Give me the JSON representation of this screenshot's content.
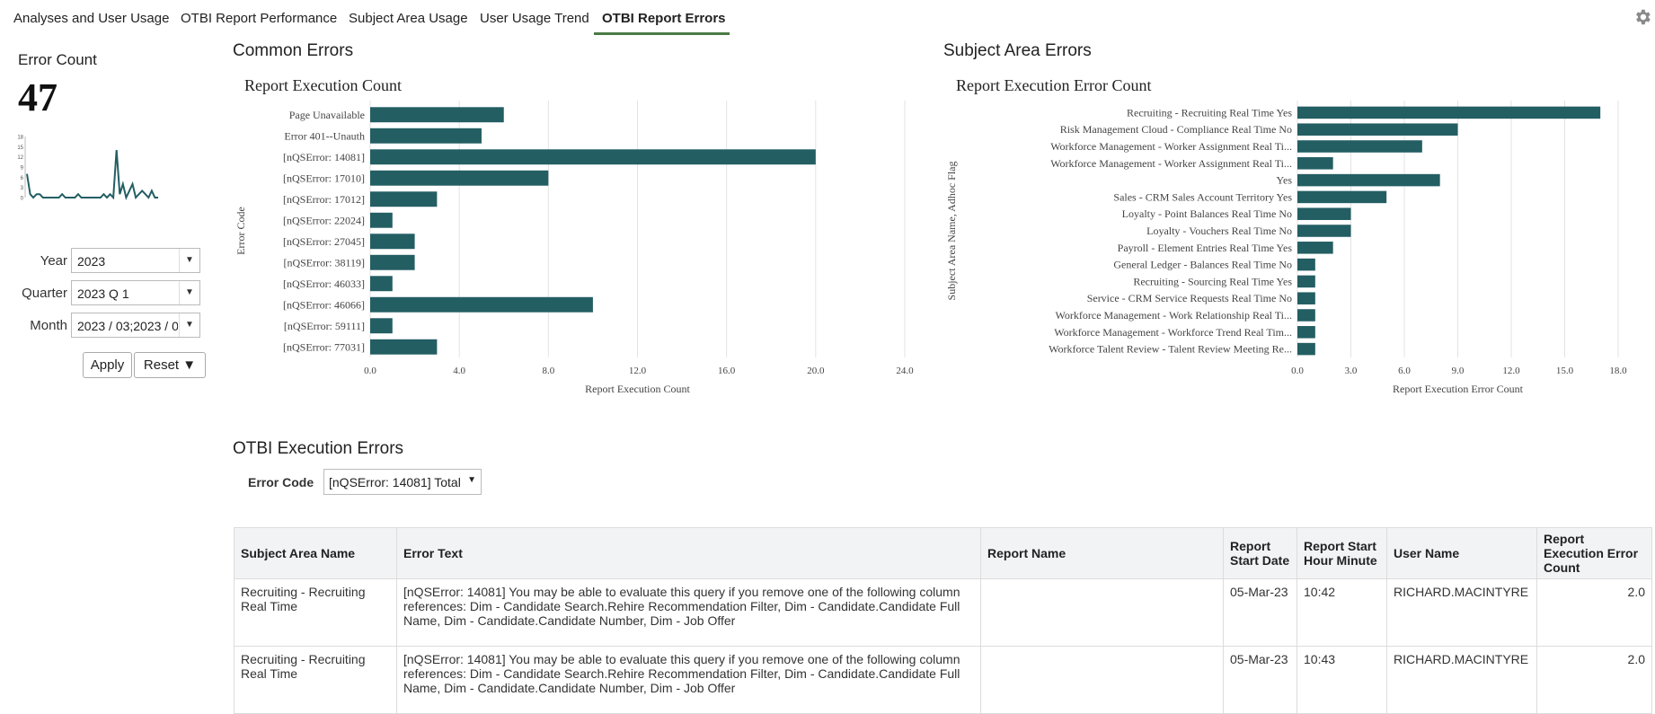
{
  "tabs": [
    {
      "label": "Analyses and User Usage"
    },
    {
      "label": "OTBI Report Performance"
    },
    {
      "label": "Subject Area Usage"
    },
    {
      "label": "User Usage Trend"
    },
    {
      "label": "OTBI Report Errors",
      "active": true
    }
  ],
  "settings_icon": "gear-icon",
  "kpi": {
    "label": "Error Count",
    "value": "47",
    "sparkline": {
      "yticks": [
        "18",
        "15",
        "12",
        "9",
        "6",
        "3",
        "0"
      ],
      "values": [
        7,
        1,
        0,
        1,
        1,
        0,
        0,
        0,
        0,
        0,
        0,
        1,
        0,
        0,
        0,
        0,
        1,
        0,
        0,
        0,
        0,
        0,
        0,
        0,
        1,
        0,
        1,
        0,
        14,
        1,
        4,
        0,
        2,
        4,
        0,
        1,
        2,
        1,
        0,
        2,
        0,
        0
      ]
    }
  },
  "prompts": {
    "year": {
      "label": "Year",
      "value": "2023"
    },
    "quarter": {
      "label": "Quarter",
      "value": "2023 Q 1"
    },
    "month": {
      "label": "Month",
      "value": "2023 / 03;2023 / 0"
    },
    "apply_label": "Apply",
    "reset_label": "Reset ▼"
  },
  "common_errors": {
    "section_title": "Common Errors",
    "chart_title": "Report Execution Count"
  },
  "subject_area_errors": {
    "section_title": "Subject Area Errors",
    "chart_title": "Report Execution Error Count"
  },
  "chart_data": [
    {
      "type": "bar",
      "orientation": "horizontal",
      "title": "Report Execution Count",
      "xlabel": "Report Execution Count",
      "ylabel": "Error Code",
      "xlim": [
        0,
        24
      ],
      "xticks": [
        "0.0",
        "4.0",
        "8.0",
        "12.0",
        "16.0",
        "20.0",
        "24.0"
      ],
      "grid": true,
      "color": "#235e63",
      "categories": [
        "Page Unavailable",
        "Error 401--Unauth",
        "[nQSError: 14081]",
        "[nQSError: 17010]",
        "[nQSError: 17012]",
        "[nQSError: 22024]",
        "[nQSError: 27045]",
        "[nQSError: 38119]",
        "[nQSError: 46033]",
        "[nQSError: 46066]",
        "[nQSError: 59111]",
        "[nQSError: 77031]"
      ],
      "values": [
        6,
        5,
        20,
        8,
        3,
        1,
        2,
        2,
        1,
        10,
        1,
        3
      ]
    },
    {
      "type": "bar",
      "orientation": "horizontal",
      "title": "Report Execution Error Count",
      "xlabel": "Report Execution Error Count",
      "ylabel": "Subject Area Name, Adhoc Flag",
      "xlim": [
        0,
        18
      ],
      "xticks": [
        "0.0",
        "3.0",
        "6.0",
        "9.0",
        "12.0",
        "15.0",
        "18.0"
      ],
      "grid": true,
      "color": "#235e63",
      "categories": [
        "Recruiting - Recruiting Real Time Yes",
        "Risk Management Cloud - Compliance Real Time No",
        "Workforce Management - Worker Assignment Real Ti...",
        "Workforce Management - Worker Assignment Real Ti...",
        "Yes",
        "Sales - CRM Sales Account Territory Yes",
        "Loyalty - Point Balances Real Time No",
        "Loyalty - Vouchers Real Time No",
        "Payroll - Element Entries Real Time Yes",
        "General Ledger - Balances Real Time No",
        "Recruiting - Sourcing Real Time Yes",
        "Service - CRM Service Requests Real Time No",
        "Workforce Management - Work Relationship Real Ti...",
        "Workforce Management - Workforce Trend Real Tim...",
        "Workforce Talent Review - Talent Review Meeting Re..."
      ],
      "values": [
        17,
        9,
        7,
        2,
        8,
        5,
        3,
        3,
        2,
        1,
        1,
        1,
        1,
        1,
        1
      ]
    }
  ],
  "execution_errors": {
    "section_title": "OTBI Execution Errors",
    "filter_label": "Error Code",
    "filter_value": "[nQSError: 14081] Total",
    "columns": [
      "Subject Area Name",
      "Error Text",
      "Report Name",
      "Report Start Date",
      "Report Start Hour Minute",
      "User Name",
      "Report Execution Error Count"
    ],
    "rows": [
      [
        "Recruiting - Recruiting Real Time",
        "[nQSError: 14081] You may be able to evaluate this query if you remove one of the following column references: Dim - Candidate Search.Rehire Recommendation Filter, Dim - Candidate.Candidate Full Name, Dim - Candidate.Candidate Number, Dim - Job Offer",
        "",
        "05-Mar-23",
        "10:42",
        "RICHARD.MACINTYRE",
        "2.0"
      ],
      [
        "Recruiting - Recruiting Real Time",
        "[nQSError: 14081] You may be able to evaluate this query if you remove one of the following column references: Dim - Candidate Search.Rehire Recommendation Filter, Dim - Candidate.Candidate Full Name, Dim - Candidate.Candidate Number, Dim - Job Offer",
        "",
        "05-Mar-23",
        "10:43",
        "RICHARD.MACINTYRE",
        "2.0"
      ]
    ]
  }
}
